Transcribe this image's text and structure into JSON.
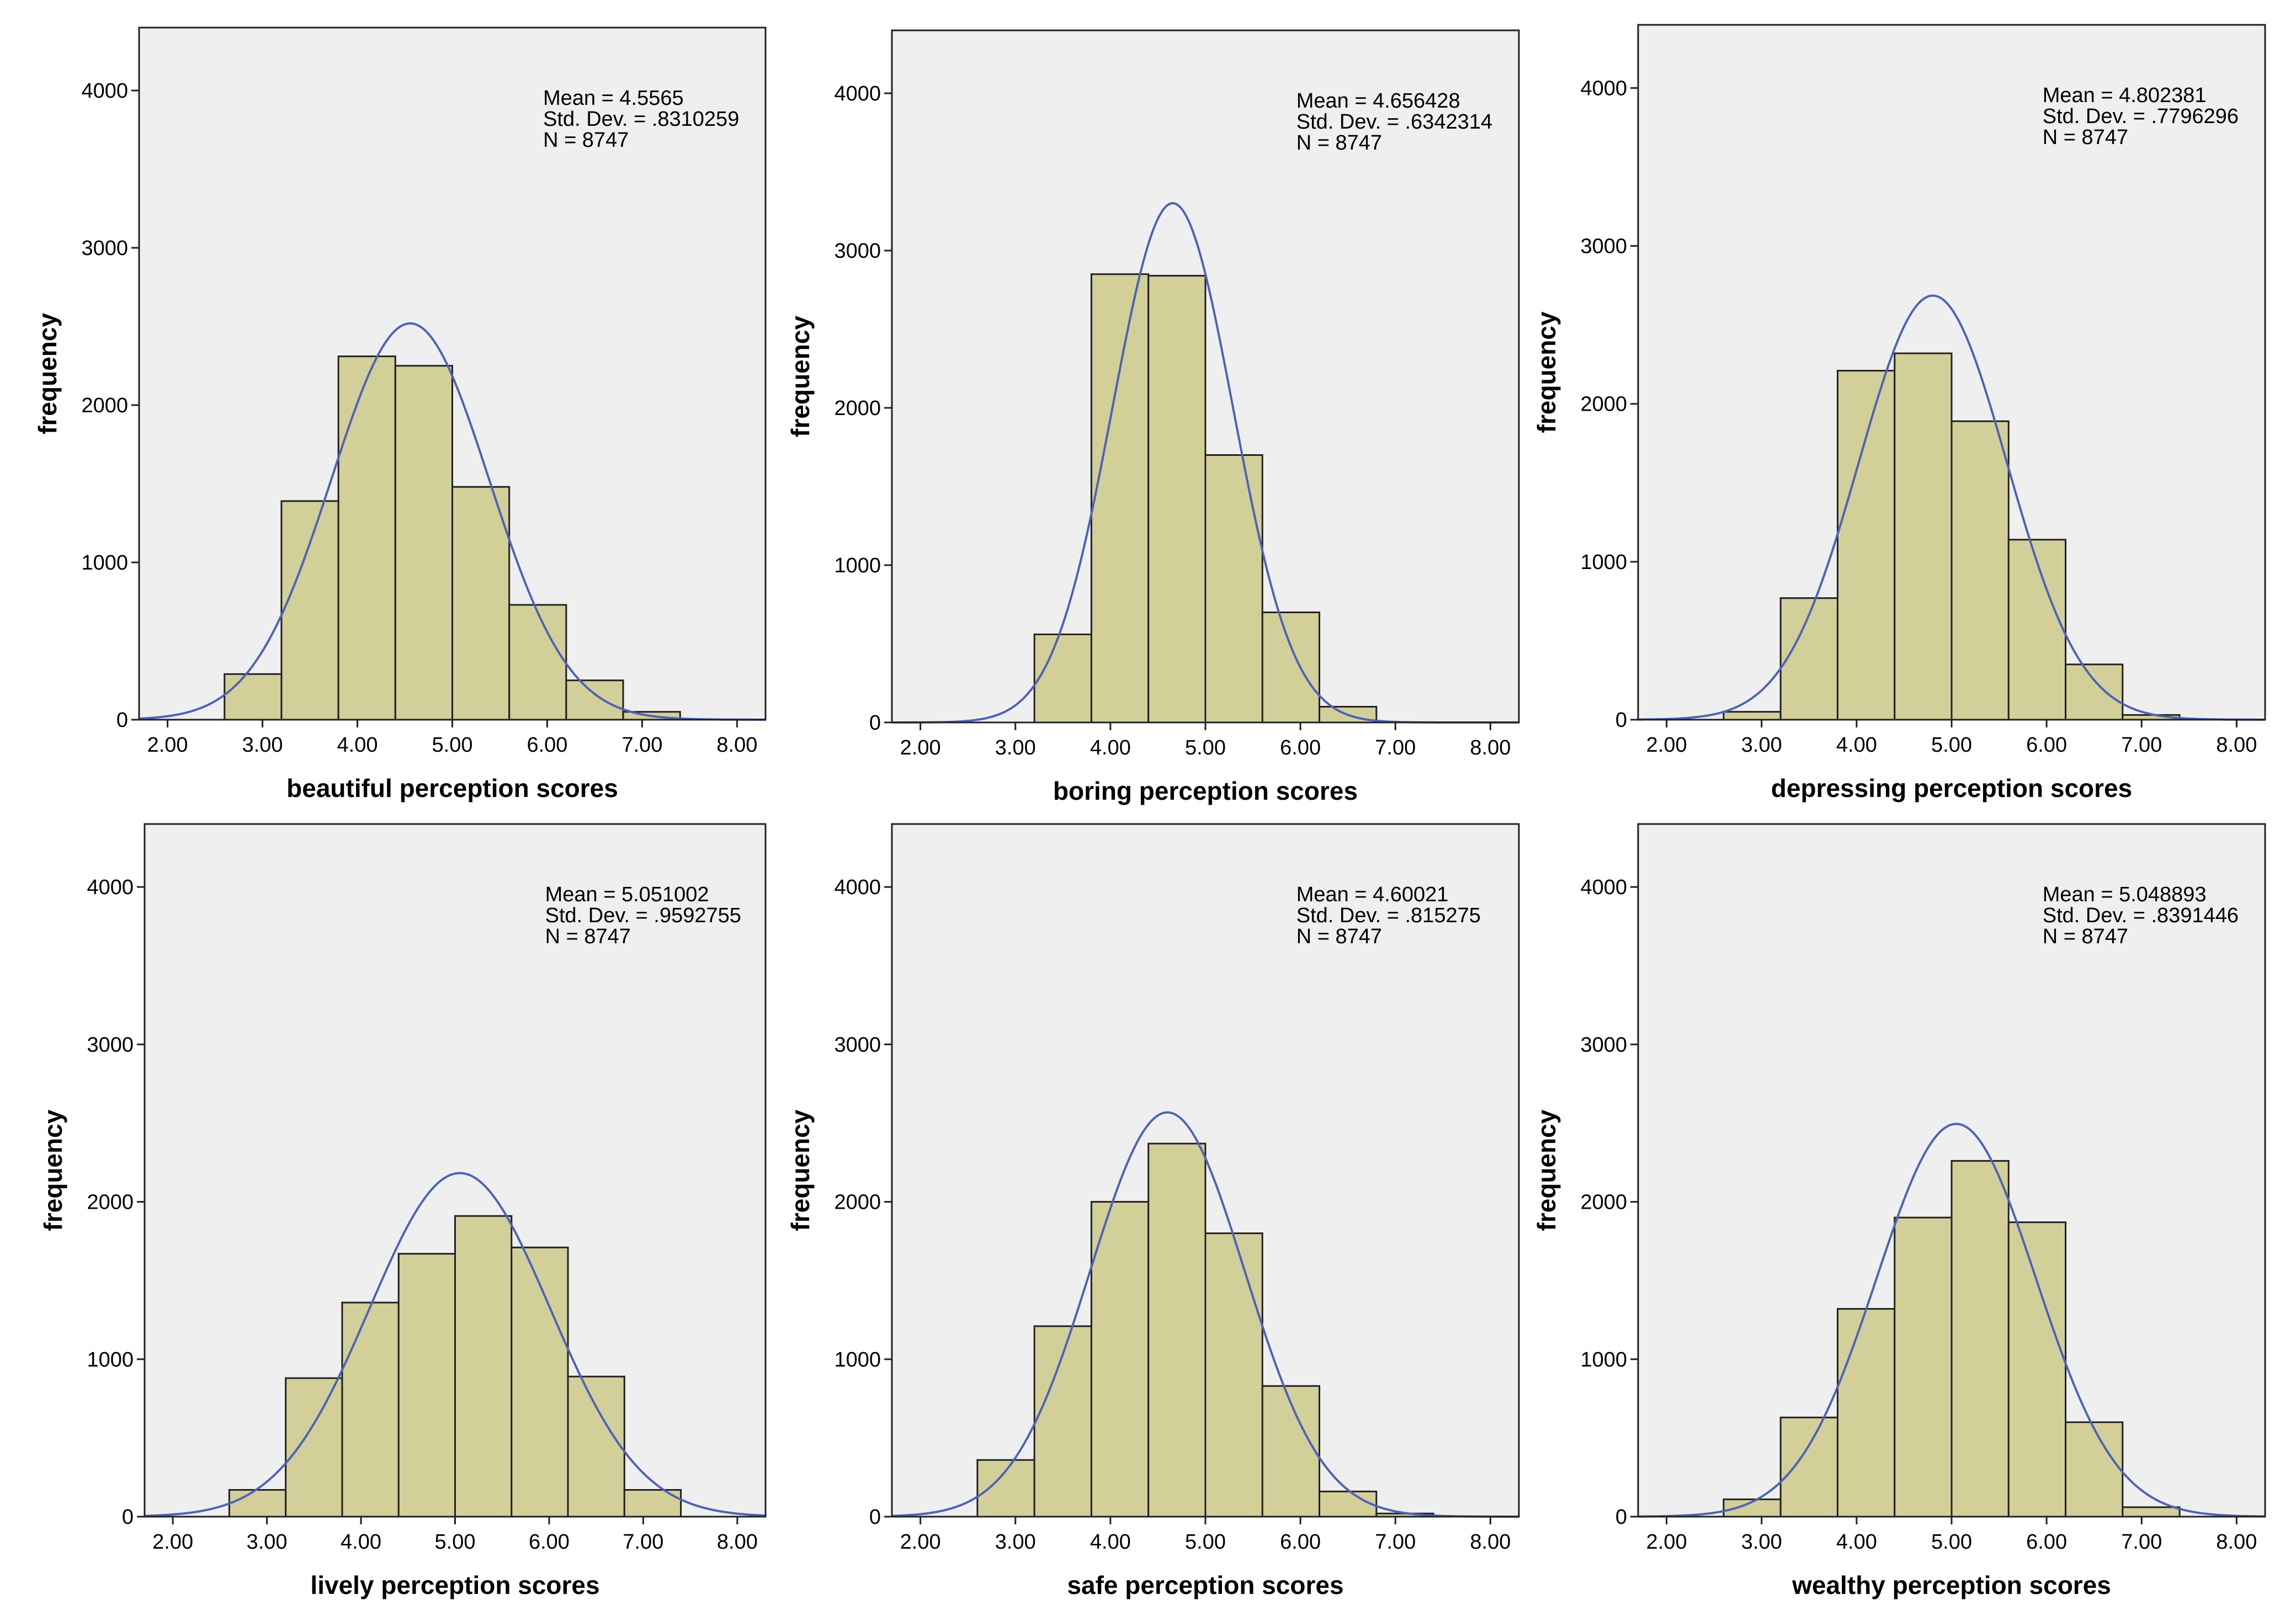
{
  "colors": {
    "plot_background": "#efefef",
    "bar_fill": "#d3cf98",
    "bar_stroke": "#222222",
    "curve": "#4d63b8",
    "axis": "#222222"
  },
  "chart_data": [
    {
      "type": "bar",
      "title": "",
      "xlabel": "beautiful perception scores",
      "ylabel": "frequency",
      "xlim": [
        1.7,
        8.3
      ],
      "ylim": [
        0,
        4400
      ],
      "x_ticks": [
        2,
        3,
        4,
        5,
        6,
        7,
        8
      ],
      "x_tick_labels": [
        "2.00",
        "3.00",
        "4.00",
        "5.00",
        "6.00",
        "7.00",
        "8.00"
      ],
      "y_ticks": [
        0,
        1000,
        2000,
        3000,
        4000
      ],
      "y_tick_labels": [
        "0",
        "1000",
        "2000",
        "3000",
        "4000"
      ],
      "bin_edges": [
        2.6,
        3.2,
        3.8,
        4.4,
        5.0,
        5.6,
        6.2,
        6.8,
        7.4
      ],
      "values": [
        290,
        1390,
        2310,
        2250,
        1480,
        730,
        250,
        50
      ],
      "curve": {
        "mean": 4.5565,
        "sd": 0.8310259,
        "n": 8747,
        "bin_width": 0.6
      },
      "stats": {
        "mean_label": "Mean = 4.5565",
        "sd_label": "Std. Dev. = .8310259",
        "n_label": "N =  8747"
      }
    },
    {
      "type": "bar",
      "title": "",
      "xlabel": "boring perception scores",
      "ylabel": "frequency",
      "xlim": [
        1.7,
        8.3
      ],
      "ylim": [
        0,
        4400
      ],
      "x_ticks": [
        2,
        3,
        4,
        5,
        6,
        7,
        8
      ],
      "x_tick_labels": [
        "2.00",
        "3.00",
        "4.00",
        "5.00",
        "6.00",
        "7.00",
        "8.00"
      ],
      "y_ticks": [
        0,
        1000,
        2000,
        3000,
        4000
      ],
      "y_tick_labels": [
        "0",
        "1000",
        "2000",
        "3000",
        "4000"
      ],
      "bin_edges": [
        3.2,
        3.8,
        4.4,
        5.0,
        5.6,
        6.2,
        6.8
      ],
      "values": [
        560,
        2850,
        2840,
        1700,
        700,
        100
      ],
      "curve": {
        "mean": 4.656428,
        "sd": 0.6342314,
        "n": 8747,
        "bin_width": 0.6
      },
      "stats": {
        "mean_label": "Mean = 4.656428",
        "sd_label": "Std. Dev. = .6342314",
        "n_label": "N =  8747"
      }
    },
    {
      "type": "bar",
      "title": "",
      "xlabel": "depressing perception scores",
      "ylabel": "frequency",
      "xlim": [
        1.7,
        8.3
      ],
      "ylim": [
        0,
        4400
      ],
      "x_ticks": [
        2,
        3,
        4,
        5,
        6,
        7,
        8
      ],
      "x_tick_labels": [
        "2.00",
        "3.00",
        "4.00",
        "5.00",
        "6.00",
        "7.00",
        "8.00"
      ],
      "y_ticks": [
        0,
        1000,
        2000,
        3000,
        4000
      ],
      "y_tick_labels": [
        "0",
        "1000",
        "2000",
        "3000",
        "4000"
      ],
      "bin_edges": [
        2.6,
        3.2,
        3.8,
        4.4,
        5.0,
        5.6,
        6.2,
        6.8,
        7.4
      ],
      "values": [
        50,
        770,
        2210,
        2320,
        1890,
        1140,
        350,
        30
      ],
      "curve": {
        "mean": 4.802381,
        "sd": 0.7796296,
        "n": 8747,
        "bin_width": 0.6
      },
      "stats": {
        "mean_label": "Mean = 4.802381",
        "sd_label": "Std. Dev. = .7796296",
        "n_label": "N =  8747"
      }
    },
    {
      "type": "bar",
      "title": "",
      "xlabel": "lively perception scores",
      "ylabel": "frequency",
      "xlim": [
        1.7,
        8.3
      ],
      "ylim": [
        0,
        4400
      ],
      "x_ticks": [
        2,
        3,
        4,
        5,
        6,
        7,
        8
      ],
      "x_tick_labels": [
        "2.00",
        "3.00",
        "4.00",
        "5.00",
        "6.00",
        "7.00",
        "8.00"
      ],
      "y_ticks": [
        0,
        1000,
        2000,
        3000,
        4000
      ],
      "y_tick_labels": [
        "0",
        "1000",
        "2000",
        "3000",
        "4000"
      ],
      "bin_edges": [
        2.6,
        3.2,
        3.8,
        4.4,
        5.0,
        5.6,
        6.2,
        6.8,
        7.4
      ],
      "values": [
        170,
        880,
        1360,
        1670,
        1910,
        1710,
        890,
        170
      ],
      "curve": {
        "mean": 5.051002,
        "sd": 0.9592755,
        "n": 8747,
        "bin_width": 0.6
      },
      "stats": {
        "mean_label": "Mean = 5.051002",
        "sd_label": "Std. Dev. = .9592755",
        "n_label": "N =  8747"
      }
    },
    {
      "type": "bar",
      "title": "",
      "xlabel": "safe perception scores",
      "ylabel": "frequency",
      "xlim": [
        1.7,
        8.3
      ],
      "ylim": [
        0,
        4400
      ],
      "x_ticks": [
        2,
        3,
        4,
        5,
        6,
        7,
        8
      ],
      "x_tick_labels": [
        "2.00",
        "3.00",
        "4.00",
        "5.00",
        "6.00",
        "7.00",
        "8.00"
      ],
      "y_ticks": [
        0,
        1000,
        2000,
        3000,
        4000
      ],
      "y_tick_labels": [
        "0",
        "1000",
        "2000",
        "3000",
        "4000"
      ],
      "bin_edges": [
        2.6,
        3.2,
        3.8,
        4.4,
        5.0,
        5.6,
        6.2,
        6.8,
        7.4
      ],
      "values": [
        360,
        1210,
        2000,
        2370,
        1800,
        830,
        160,
        20
      ],
      "curve": {
        "mean": 4.60021,
        "sd": 0.815275,
        "n": 8747,
        "bin_width": 0.6
      },
      "stats": {
        "mean_label": "Mean = 4.60021",
        "sd_label": "Std. Dev. = .815275",
        "n_label": "N =  8747"
      }
    },
    {
      "type": "bar",
      "title": "",
      "xlabel": "wealthy perception scores",
      "ylabel": "frequency",
      "xlim": [
        1.7,
        8.3
      ],
      "ylim": [
        0,
        4400
      ],
      "x_ticks": [
        2,
        3,
        4,
        5,
        6,
        7,
        8
      ],
      "x_tick_labels": [
        "2.00",
        "3.00",
        "4.00",
        "5.00",
        "6.00",
        "7.00",
        "8.00"
      ],
      "y_ticks": [
        0,
        1000,
        2000,
        3000,
        4000
      ],
      "y_tick_labels": [
        "0",
        "1000",
        "2000",
        "3000",
        "4000"
      ],
      "bin_edges": [
        2.6,
        3.2,
        3.8,
        4.4,
        5.0,
        5.6,
        6.2,
        6.8,
        7.4
      ],
      "values": [
        110,
        630,
        1320,
        1900,
        2260,
        1870,
        600,
        60
      ],
      "curve": {
        "mean": 5.048893,
        "sd": 0.8391446,
        "n": 8747,
        "bin_width": 0.6
      },
      "stats": {
        "mean_label": "Mean = 5.048893",
        "sd_label": "Std. Dev. = .8391446",
        "n_label": "N =  8747"
      }
    }
  ]
}
